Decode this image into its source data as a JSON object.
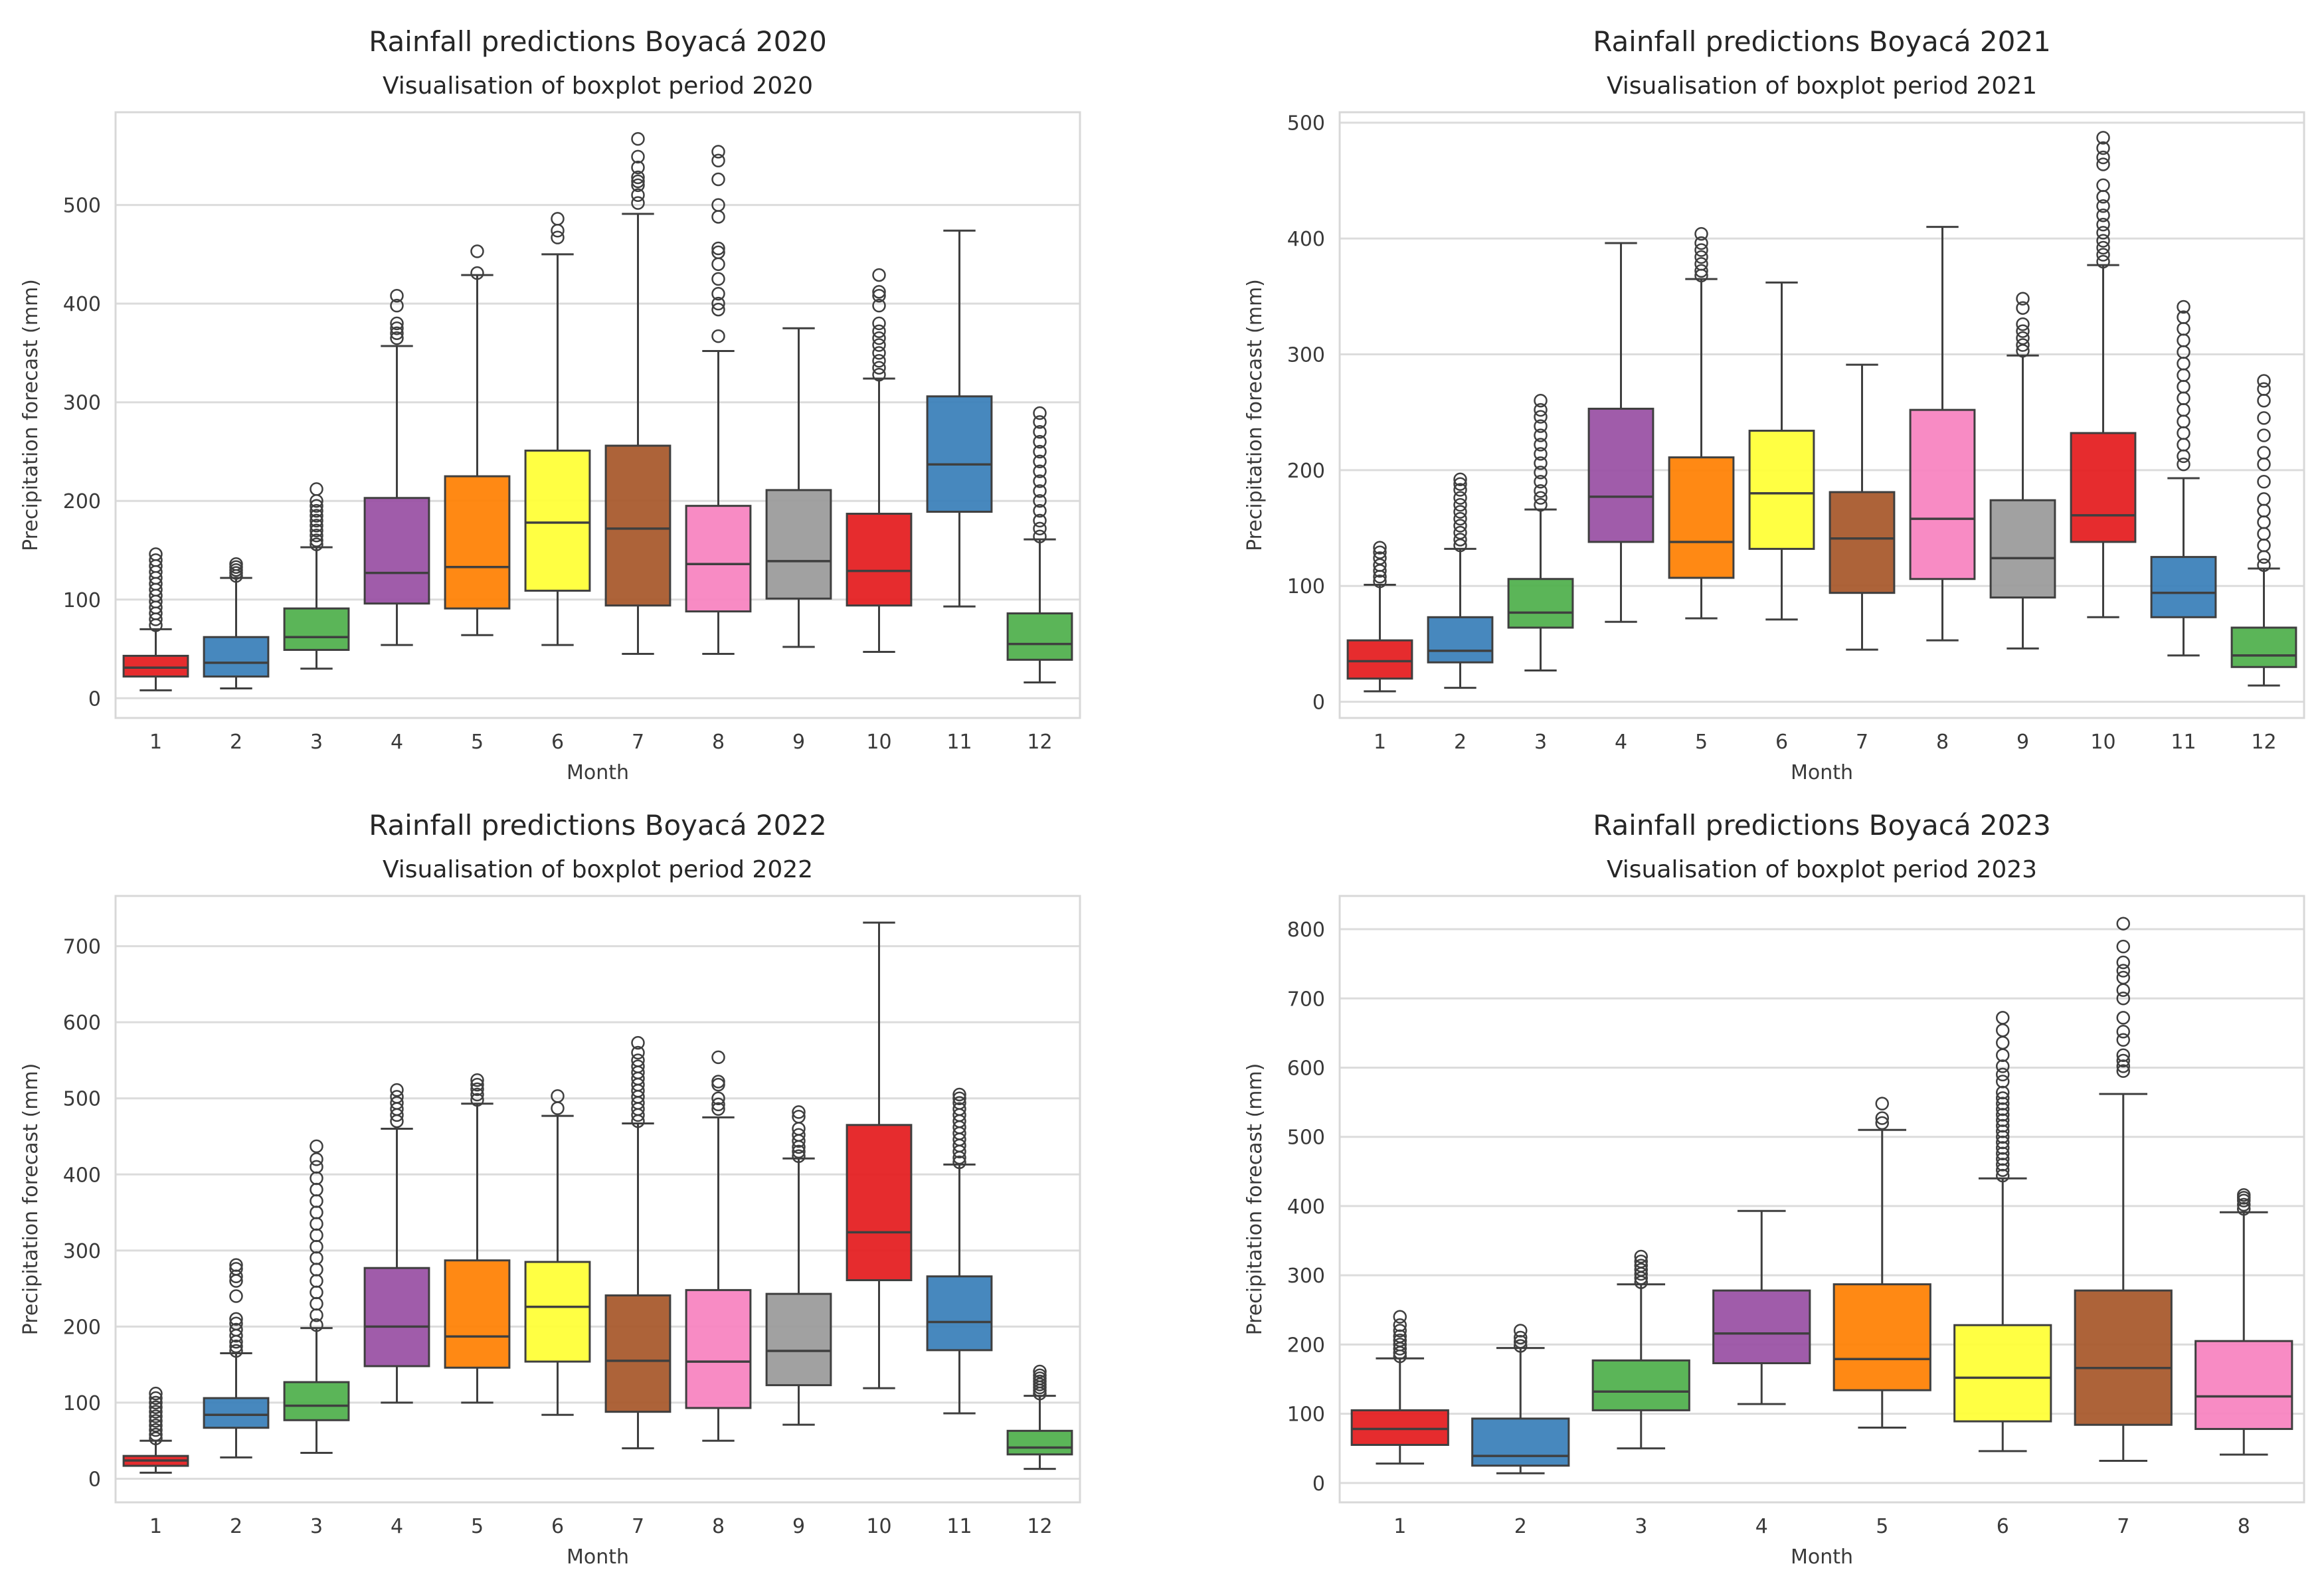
{
  "chart_data": [
    {
      "type": "boxplot",
      "title": "Rainfall predictions Boyacá 2020",
      "subtitle": "Visualisation of boxplot period 2020",
      "xlabel": "Month",
      "ylabel": "Precipitation forecast (mm)",
      "ylim": [
        -20,
        594
      ],
      "yticks": [
        0,
        100,
        200,
        300,
        400,
        500
      ],
      "grid": "horizontal",
      "categories": [
        "1",
        "2",
        "3",
        "4",
        "5",
        "6",
        "7",
        "8",
        "9",
        "10",
        "11",
        "12"
      ],
      "boxes": [
        {
          "whislo": 8,
          "q1": 22,
          "med": 31,
          "q3": 43,
          "whishi": 70,
          "outliers": [
            74,
            80,
            86,
            92,
            98,
            104,
            110,
            116,
            122,
            128,
            134,
            140,
            146
          ]
        },
        {
          "whislo": 10,
          "q1": 22,
          "med": 36,
          "q3": 62,
          "whishi": 122,
          "outliers": [
            124,
            127,
            130,
            133,
            136
          ]
        },
        {
          "whislo": 30,
          "q1": 49,
          "med": 62,
          "q3": 91,
          "whishi": 153,
          "outliers": [
            156,
            160,
            165,
            170,
            175,
            180,
            185,
            190,
            195,
            200,
            212
          ]
        },
        {
          "whislo": 54,
          "q1": 96,
          "med": 127,
          "q3": 203,
          "whishi": 357,
          "outliers": [
            365,
            370,
            375,
            380,
            398,
            408
          ]
        },
        {
          "whislo": 64,
          "q1": 91,
          "med": 133,
          "q3": 225,
          "whishi": 429,
          "outliers": [
            431,
            453
          ]
        },
        {
          "whislo": 54,
          "q1": 109,
          "med": 178,
          "q3": 251,
          "whishi": 450,
          "outliers": [
            467,
            474,
            486
          ]
        },
        {
          "whislo": 45,
          "q1": 94,
          "med": 172,
          "q3": 256,
          "whishi": 491,
          "outliers": [
            502,
            510,
            520,
            524,
            528,
            538,
            549,
            567
          ]
        },
        {
          "whislo": 45,
          "q1": 88,
          "med": 136,
          "q3": 195,
          "whishi": 352,
          "outliers": [
            367,
            394,
            400,
            410,
            425,
            440,
            452,
            456,
            488,
            500,
            526,
            545,
            554
          ]
        },
        {
          "whislo": 52,
          "q1": 101,
          "med": 139,
          "q3": 211,
          "whishi": 375,
          "outliers": []
        },
        {
          "whislo": 47,
          "q1": 94,
          "med": 129,
          "q3": 187,
          "whishi": 324,
          "outliers": [
            328,
            335,
            342,
            350,
            358,
            365,
            372,
            380,
            398,
            408,
            412,
            429
          ]
        },
        {
          "whislo": 93,
          "q1": 189,
          "med": 237,
          "q3": 306,
          "whishi": 474,
          "outliers": []
        },
        {
          "whislo": 16,
          "q1": 39,
          "med": 55,
          "q3": 86,
          "whishi": 161,
          "outliers": [
            164,
            172,
            180,
            190,
            200,
            210,
            220,
            230,
            240,
            250,
            260,
            270,
            280,
            289
          ]
        }
      ],
      "colors": [
        "#e41a1c",
        "#377eb8",
        "#4daf4a",
        "#984ea3",
        "#ff7f00",
        "#ffff33",
        "#a65628",
        "#f781bf",
        "#999999",
        "#e41a1c",
        "#377eb8",
        "#4daf4a"
      ]
    },
    {
      "type": "boxplot",
      "title": "Rainfall predictions Boyacá 2021",
      "subtitle": "Visualisation of boxplot period 2021",
      "xlabel": "Month",
      "ylabel": "Precipitation forecast (mm)",
      "ylim": [
        -14,
        509
      ],
      "yticks": [
        0,
        100,
        200,
        300,
        400,
        500
      ],
      "grid": "horizontal",
      "categories": [
        "1",
        "2",
        "3",
        "4",
        "5",
        "6",
        "7",
        "8",
        "9",
        "10",
        "11",
        "12"
      ],
      "boxes": [
        {
          "whislo": 9,
          "q1": 20,
          "med": 35,
          "q3": 53,
          "whishi": 101,
          "outliers": [
            104,
            108,
            113,
            118,
            124,
            129,
            133
          ]
        },
        {
          "whislo": 12,
          "q1": 34,
          "med": 44,
          "q3": 73,
          "whishi": 132,
          "outliers": [
            135,
            140,
            146,
            152,
            158,
            164,
            170,
            176,
            183,
            188,
            192
          ]
        },
        {
          "whislo": 27,
          "q1": 64,
          "med": 77,
          "q3": 106,
          "whishi": 166,
          "outliers": [
            170,
            176,
            182,
            190,
            198,
            206,
            214,
            222,
            230,
            238,
            246,
            252,
            260
          ]
        },
        {
          "whislo": 69,
          "q1": 138,
          "med": 177,
          "q3": 253,
          "whishi": 396,
          "outliers": []
        },
        {
          "whislo": 72,
          "q1": 107,
          "med": 138,
          "q3": 211,
          "whishi": 365,
          "outliers": [
            368,
            372,
            378,
            384,
            390,
            396,
            404
          ]
        },
        {
          "whislo": 71,
          "q1": 132,
          "med": 180,
          "q3": 234,
          "whishi": 362,
          "outliers": []
        },
        {
          "whislo": 45,
          "q1": 94,
          "med": 141,
          "q3": 181,
          "whishi": 291,
          "outliers": []
        },
        {
          "whislo": 53,
          "q1": 106,
          "med": 158,
          "q3": 252,
          "whishi": 410,
          "outliers": []
        },
        {
          "whislo": 46,
          "q1": 90,
          "med": 124,
          "q3": 174,
          "whishi": 299,
          "outliers": [
            303,
            308,
            314,
            320,
            326,
            340,
            348
          ]
        },
        {
          "whislo": 73,
          "q1": 138,
          "med": 161,
          "q3": 232,
          "whishi": 377,
          "outliers": [
            380,
            386,
            392,
            398,
            405,
            412,
            420,
            428,
            436,
            446,
            464,
            470,
            478,
            487
          ]
        },
        {
          "whislo": 40,
          "q1": 73,
          "med": 94,
          "q3": 125,
          "whishi": 193,
          "outliers": [
            205,
            212,
            222,
            232,
            242,
            252,
            262,
            272,
            282,
            292,
            302,
            312,
            322,
            332,
            341
          ]
        },
        {
          "whislo": 14,
          "q1": 30,
          "med": 40,
          "q3": 64,
          "whishi": 115,
          "outliers": [
            118,
            125,
            135,
            145,
            155,
            165,
            175,
            190,
            205,
            215,
            230,
            245,
            260,
            270,
            277
          ]
        }
      ],
      "colors": [
        "#e41a1c",
        "#377eb8",
        "#4daf4a",
        "#984ea3",
        "#ff7f00",
        "#ffff33",
        "#a65628",
        "#f781bf",
        "#999999",
        "#e41a1c",
        "#377eb8",
        "#4daf4a"
      ]
    },
    {
      "type": "boxplot",
      "title": "Rainfall predictions Boyacá 2022",
      "subtitle": "Visualisation of boxplot period 2022",
      "xlabel": "Month",
      "ylabel": "Precipitation forecast (mm)",
      "ylim": [
        -31,
        766
      ],
      "yticks": [
        0,
        100,
        200,
        300,
        400,
        500,
        600,
        700
      ],
      "grid": "horizontal",
      "categories": [
        "1",
        "2",
        "3",
        "4",
        "5",
        "6",
        "7",
        "8",
        "9",
        "10",
        "11",
        "12"
      ],
      "boxes": [
        {
          "whislo": 8,
          "q1": 17,
          "med": 24,
          "q3": 30,
          "whishi": 50,
          "outliers": [
            53,
            58,
            64,
            70,
            76,
            82,
            88,
            94,
            100,
            106,
            112
          ]
        },
        {
          "whislo": 28,
          "q1": 67,
          "med": 84,
          "q3": 106,
          "whishi": 165,
          "outliers": [
            168,
            174,
            180,
            188,
            196,
            204,
            210,
            240,
            260,
            266,
            276,
            281
          ]
        },
        {
          "whislo": 34,
          "q1": 77,
          "med": 96,
          "q3": 127,
          "whishi": 198,
          "outliers": [
            202,
            215,
            230,
            245,
            260,
            275,
            290,
            305,
            320,
            335,
            350,
            365,
            380,
            395,
            410,
            420,
            437
          ]
        },
        {
          "whislo": 100,
          "q1": 148,
          "med": 200,
          "q3": 277,
          "whishi": 460,
          "outliers": [
            470,
            478,
            486,
            494,
            502,
            511
          ]
        },
        {
          "whislo": 100,
          "q1": 146,
          "med": 187,
          "q3": 287,
          "whishi": 493,
          "outliers": [
            498,
            505,
            512,
            518,
            524
          ]
        },
        {
          "whislo": 84,
          "q1": 154,
          "med": 226,
          "q3": 285,
          "whishi": 477,
          "outliers": [
            487,
            503
          ]
        },
        {
          "whislo": 40,
          "q1": 88,
          "med": 155,
          "q3": 241,
          "whishi": 467,
          "outliers": [
            470,
            478,
            486,
            494,
            502,
            510,
            518,
            526,
            534,
            542,
            550,
            560,
            573
          ]
        },
        {
          "whislo": 50,
          "q1": 93,
          "med": 154,
          "q3": 248,
          "whishi": 475,
          "outliers": [
            486,
            492,
            500,
            518,
            522,
            554
          ]
        },
        {
          "whislo": 71,
          "q1": 123,
          "med": 168,
          "q3": 243,
          "whishi": 421,
          "outliers": [
            424,
            430,
            436,
            444,
            452,
            460,
            476,
            482
          ]
        },
        {
          "whislo": 119,
          "q1": 261,
          "med": 324,
          "q3": 465,
          "whishi": 731,
          "outliers": []
        },
        {
          "whislo": 86,
          "q1": 169,
          "med": 206,
          "q3": 266,
          "whishi": 413,
          "outliers": [
            416,
            422,
            430,
            438,
            446,
            454,
            462,
            470,
            478,
            486,
            494,
            500,
            505
          ]
        },
        {
          "whislo": 13,
          "q1": 32,
          "med": 41,
          "q3": 63,
          "whishi": 109,
          "outliers": [
            112,
            116,
            120,
            124,
            128,
            132,
            136,
            141
          ]
        }
      ],
      "colors": [
        "#e41a1c",
        "#377eb8",
        "#4daf4a",
        "#984ea3",
        "#ff7f00",
        "#ffff33",
        "#a65628",
        "#f781bf",
        "#999999",
        "#e41a1c",
        "#377eb8",
        "#4daf4a"
      ]
    },
    {
      "type": "boxplot",
      "title": "Rainfall predictions Boyacá 2023",
      "subtitle": "Visualisation of boxplot period 2023",
      "xlabel": "Month",
      "ylabel": "Precipitation forecast (mm)",
      "ylim": [
        -28,
        848
      ],
      "yticks": [
        0,
        100,
        200,
        300,
        400,
        500,
        600,
        700,
        800
      ],
      "grid": "horizontal",
      "categories": [
        "1",
        "2",
        "3",
        "4",
        "5",
        "6",
        "7",
        "8"
      ],
      "boxes": [
        {
          "whislo": 28,
          "q1": 55,
          "med": 78,
          "q3": 105,
          "whishi": 180,
          "outliers": [
            183,
            188,
            194,
            200,
            206,
            212,
            220,
            228,
            240
          ]
        },
        {
          "whislo": 14,
          "q1": 25,
          "med": 39,
          "q3": 93,
          "whishi": 195,
          "outliers": [
            198,
            204,
            210,
            220
          ]
        },
        {
          "whislo": 50,
          "q1": 105,
          "med": 132,
          "q3": 177,
          "whishi": 287,
          "outliers": [
            290,
            296,
            302,
            308,
            314,
            320,
            327
          ]
        },
        {
          "whislo": 114,
          "q1": 173,
          "med": 216,
          "q3": 278,
          "whishi": 393,
          "outliers": []
        },
        {
          "whislo": 80,
          "q1": 134,
          "med": 179,
          "q3": 287,
          "whishi": 510,
          "outliers": [
            520,
            527,
            548
          ]
        },
        {
          "whislo": 46,
          "q1": 89,
          "med": 152,
          "q3": 228,
          "whishi": 440,
          "outliers": [
            444,
            452,
            460,
            468,
            476,
            484,
            492,
            500,
            508,
            516,
            524,
            532,
            540,
            548,
            556,
            564,
            580,
            590,
            602,
            618,
            636,
            654,
            672
          ]
        },
        {
          "whislo": 32,
          "q1": 84,
          "med": 166,
          "q3": 278,
          "whishi": 562,
          "outliers": [
            595,
            602,
            610,
            618,
            640,
            652,
            672,
            700,
            712,
            730,
            740,
            752,
            775,
            808
          ]
        },
        {
          "whislo": 41,
          "q1": 78,
          "med": 125,
          "q3": 205,
          "whishi": 391,
          "outliers": [
            396,
            402,
            408,
            412,
            416
          ]
        }
      ],
      "colors": [
        "#e41a1c",
        "#377eb8",
        "#4daf4a",
        "#984ea3",
        "#ff7f00",
        "#ffff33",
        "#a65628",
        "#f781bf"
      ]
    }
  ]
}
